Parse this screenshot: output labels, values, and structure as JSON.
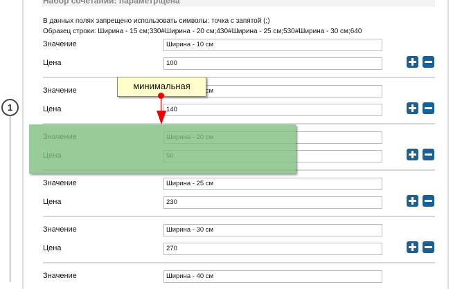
{
  "step_number": "1",
  "section_title": "Набор сочетаний: параметр\\цена",
  "notes": [
    "В данных полях запрещено использовать символы: точка с запятой (;)",
    "Образец строки: Ширина - 15 см;330#Ширина - 20 см;430#Ширина - 25 см;530#Ширина - 30 см;640"
  ],
  "labels": {
    "value": "Значение",
    "price": "Цена"
  },
  "rows": [
    {
      "value": "Ширина - 10 см",
      "price": "100"
    },
    {
      "value": "Ширина - 15 см",
      "price": "140"
    },
    {
      "value": "Ширина - 20 см",
      "price": "50"
    },
    {
      "value": "Ширина - 25 см",
      "price": "230"
    },
    {
      "value": "Ширина - 30 см",
      "price": "270"
    },
    {
      "value": "Ширина - 40 см",
      "price": ""
    }
  ],
  "annotation": {
    "tooltip": "минимальная",
    "highlight_color": "#99cc99",
    "arrow_color": "#ee0000"
  },
  "icons": {
    "add": "plus-icon",
    "remove": "minus-icon"
  },
  "accent_color": "#1a5f96"
}
